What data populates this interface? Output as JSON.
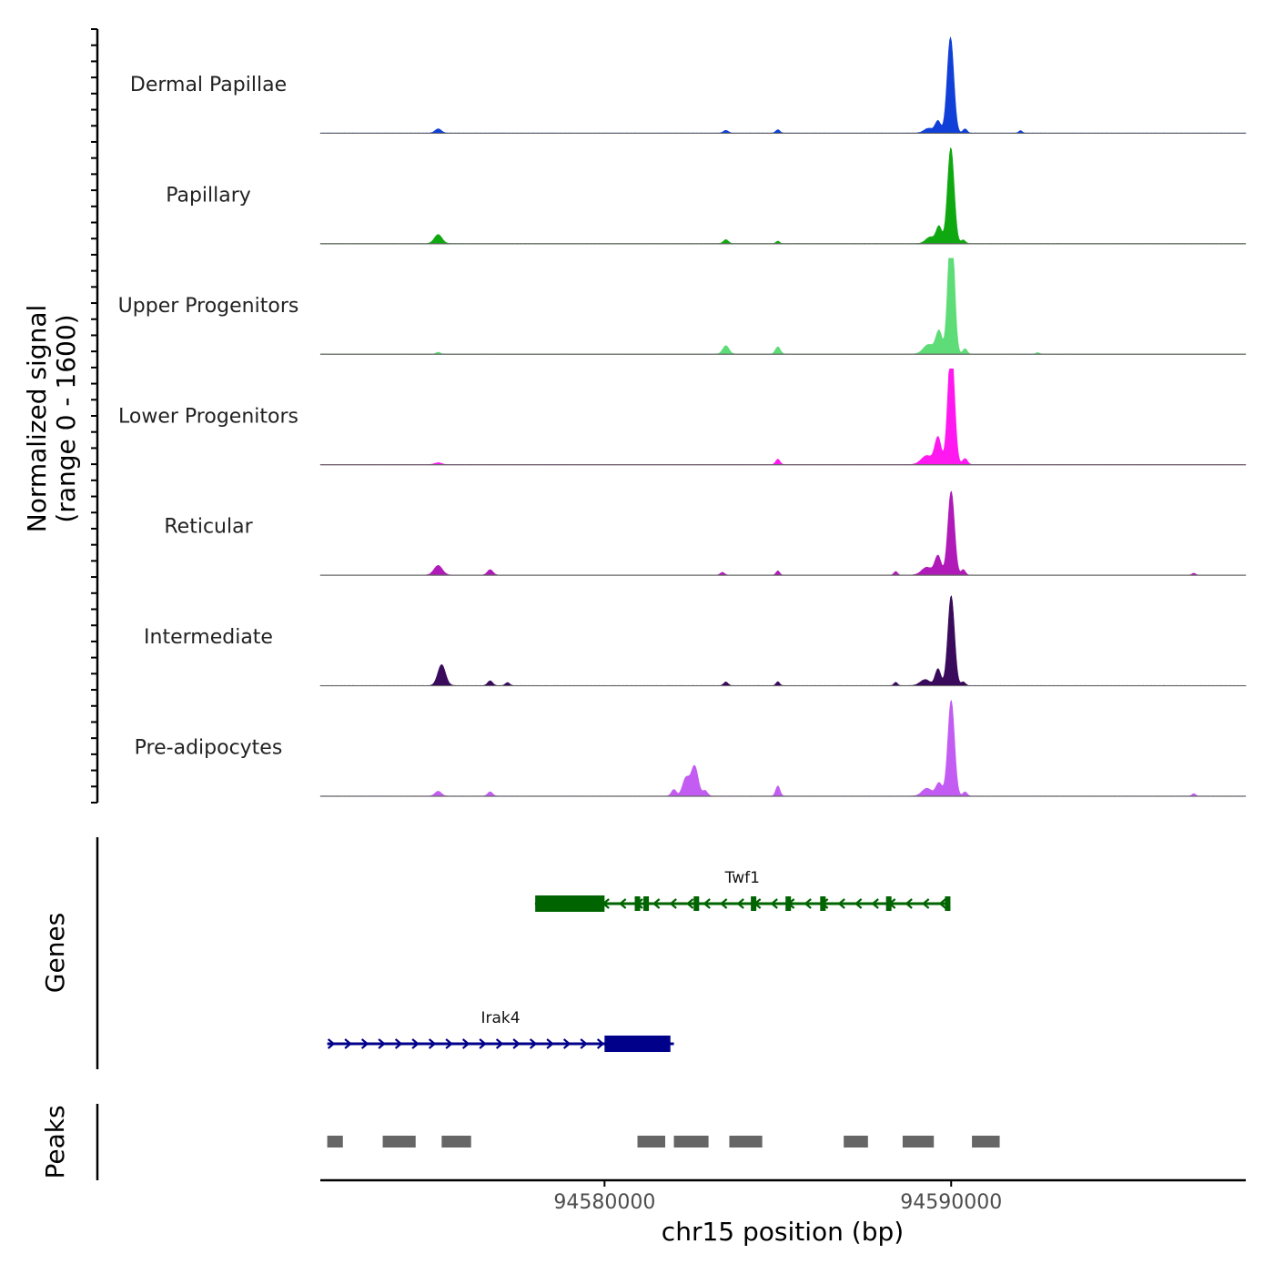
{
  "chart_data": {
    "type": "area",
    "title": "",
    "xlabel": "chr15 position (bp)",
    "ylabel_line1": "Normalized signal",
    "ylabel_line2": "(range 0 - 1600)",
    "ylim": [
      0,
      1600
    ],
    "xlim": [
      94571800,
      94598500
    ],
    "x_ticks": [
      {
        "value": 94580000,
        "label": "94580000"
      },
      {
        "value": 94590000,
        "label": "94590000"
      }
    ],
    "baseline_color": "#666666",
    "series": [
      {
        "name": "Dermal Papillae",
        "color": "#1040d8",
        "peaks": [
          [
            94575200,
            70,
            90
          ],
          [
            94583500,
            45,
            70
          ],
          [
            94585000,
            55,
            60
          ],
          [
            94589350,
            80,
            130
          ],
          [
            94589620,
            200,
            80
          ],
          [
            94589980,
            1600,
            95
          ],
          [
            94590400,
            70,
            60
          ],
          [
            94592000,
            40,
            50
          ]
        ]
      },
      {
        "name": "Papillary",
        "color": "#10a810",
        "peaks": [
          [
            94575200,
            150,
            110
          ],
          [
            94583500,
            65,
            70
          ],
          [
            94585000,
            40,
            50
          ],
          [
            94589400,
            110,
            130
          ],
          [
            94589650,
            280,
            80
          ],
          [
            94589990,
            1600,
            95
          ],
          [
            94590350,
            60,
            60
          ]
        ]
      },
      {
        "name": "Upper Progenitors",
        "color": "#5edc78",
        "peaks": [
          [
            94575200,
            30,
            60
          ],
          [
            94583500,
            140,
            90
          ],
          [
            94585000,
            120,
            70
          ],
          [
            94589350,
            160,
            150
          ],
          [
            94589650,
            380,
            90
          ],
          [
            94590000,
            2300,
            90
          ],
          [
            94590400,
            90,
            60
          ],
          [
            94592500,
            25,
            50
          ]
        ]
      },
      {
        "name": "Lower Progenitors",
        "color": "#ff18f0",
        "peaks": [
          [
            94575200,
            30,
            100
          ],
          [
            94585000,
            90,
            60
          ],
          [
            94589300,
            150,
            160
          ],
          [
            94589620,
            450,
            90
          ],
          [
            94590000,
            2000,
            95
          ],
          [
            94590400,
            100,
            70
          ]
        ]
      },
      {
        "name": "Reticular",
        "color": "#b01ab8",
        "peaks": [
          [
            94575200,
            160,
            120
          ],
          [
            94576700,
            90,
            80
          ],
          [
            94583400,
            45,
            60
          ],
          [
            94585000,
            70,
            50
          ],
          [
            94588400,
            60,
            50
          ],
          [
            94589300,
            130,
            150
          ],
          [
            94589620,
            320,
            90
          ],
          [
            94590000,
            1400,
            95
          ],
          [
            94590350,
            90,
            60
          ],
          [
            94597000,
            30,
            50
          ]
        ]
      },
      {
        "name": "Intermediate",
        "color": "#3a0a5c",
        "peaks": [
          [
            94575300,
            350,
            110
          ],
          [
            94576700,
            80,
            70
          ],
          [
            94577200,
            50,
            60
          ],
          [
            94583500,
            60,
            60
          ],
          [
            94585000,
            65,
            50
          ],
          [
            94588400,
            55,
            50
          ],
          [
            94589250,
            100,
            140
          ],
          [
            94589620,
            280,
            80
          ],
          [
            94590000,
            1500,
            95
          ],
          [
            94590350,
            60,
            60
          ]
        ]
      },
      {
        "name": "Pre-adipocytes",
        "color": "#c25cf2",
        "peaks": [
          [
            94575200,
            80,
            90
          ],
          [
            94576700,
            70,
            70
          ],
          [
            94582000,
            110,
            70
          ],
          [
            94582350,
            300,
            100
          ],
          [
            94582600,
            500,
            100
          ],
          [
            94582900,
            90,
            70
          ],
          [
            94585000,
            170,
            60
          ],
          [
            94589300,
            130,
            140
          ],
          [
            94589650,
            220,
            90
          ],
          [
            94590000,
            1600,
            95
          ],
          [
            94590400,
            70,
            60
          ],
          [
            94597000,
            40,
            50
          ]
        ]
      }
    ],
    "genes": [
      {
        "name": "Twf1",
        "strand": "-",
        "start": 94578000,
        "end": 94589900,
        "row": 0,
        "color": "#006400",
        "utr": [
          [
            94578000,
            94580000
          ]
        ],
        "exons": [
          94580950,
          94581200,
          94582650,
          94584300,
          94585300,
          94586300,
          94588200,
          94589900
        ]
      },
      {
        "name": "Irak4",
        "strand": "+",
        "start": 94572000,
        "end": 94582000,
        "row": 1,
        "color": "#00008b",
        "utr": [
          [
            94580000,
            94581900
          ]
        ],
        "exons": []
      }
    ],
    "peaks_track": [
      [
        94572000,
        94572450
      ],
      [
        94573600,
        94574550
      ],
      [
        94575300,
        94576150
      ],
      [
        94580950,
        94581750
      ],
      [
        94582000,
        94583000
      ],
      [
        94583600,
        94584550
      ],
      [
        94586900,
        94587600
      ],
      [
        94588600,
        94589500
      ],
      [
        94590600,
        94591400
      ]
    ],
    "peaks_color": "#666666",
    "genes_track_label": "Genes",
    "peaks_track_label": "Peaks"
  }
}
